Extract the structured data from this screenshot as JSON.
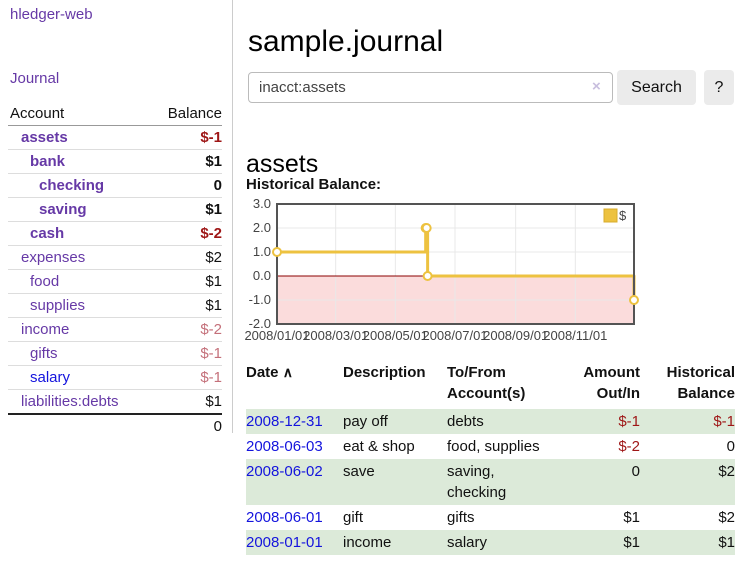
{
  "app": {
    "title": "hledger-web"
  },
  "sidebar": {
    "journal_link": "Journal",
    "accounts_header": {
      "account": "Account",
      "balance": "Balance"
    },
    "accounts": [
      {
        "name": "assets",
        "level": 1,
        "bold": true,
        "balance": "$-1"
      },
      {
        "name": "bank",
        "level": 2,
        "bold": true,
        "balance": "$1"
      },
      {
        "name": "checking",
        "level": 3,
        "bold": true,
        "balance": "0"
      },
      {
        "name": "saving",
        "level": 3,
        "bold": true,
        "balance": "$1"
      },
      {
        "name": "cash",
        "level": 2,
        "bold": true,
        "balance": "$-2"
      },
      {
        "name": "expenses",
        "level": 1,
        "bold": false,
        "balance": "$2"
      },
      {
        "name": "food",
        "level": 2,
        "bold": false,
        "balance": "$1"
      },
      {
        "name": "supplies",
        "level": 2,
        "bold": false,
        "balance": "$1"
      },
      {
        "name": "income",
        "level": 1,
        "bold": false,
        "balance": "$-2"
      },
      {
        "name": "gifts",
        "level": 2,
        "bold": false,
        "balance": "$-1"
      },
      {
        "name": "salary",
        "level": 2,
        "bold": false,
        "balance": "$-1",
        "link_color": "blue"
      },
      {
        "name": "liabilities:debts",
        "level": 1,
        "bold": false,
        "balance": "$1"
      }
    ],
    "total": "0"
  },
  "header": {
    "title": "sample.journal"
  },
  "search": {
    "value": "inacct:assets",
    "clear_icon": "×",
    "button_label": "Search",
    "help_label": "?"
  },
  "account_page": {
    "heading": "assets",
    "chart_label": "Historical Balance:"
  },
  "chart_data": {
    "type": "line",
    "style": "step",
    "title": "Historical Balance",
    "series": [
      {
        "name": "$",
        "color": "#edc240",
        "points": [
          [
            "2008-01-01",
            1
          ],
          [
            "2008-06-01",
            2
          ],
          [
            "2008-06-02",
            2
          ],
          [
            "2008-06-03",
            0
          ],
          [
            "2008-12-31",
            -1
          ]
        ]
      }
    ],
    "x_ticks": [
      "2008/01/01",
      "2008/03/01",
      "2008/05/01",
      "2008/07/01",
      "2008/09/01",
      "2008/11/01"
    ],
    "y_ticks": [
      3.0,
      2.0,
      1.0,
      0.0,
      -1.0,
      -2.0
    ],
    "ylim": [
      -2,
      3
    ],
    "xlim": [
      "2008-01-01",
      "2008-12-31"
    ],
    "grid": true,
    "legend_position": "top-right",
    "negative_region_color": "#fbdcdc",
    "zero_line_color": "#8b0000",
    "border_color": "#545454",
    "grid_color": "#e8e8e8"
  },
  "transactions": {
    "sort_icon": "∧",
    "columns": {
      "date": "Date",
      "description": "Description",
      "tofrom": "To/From Account(s)",
      "amount": "Amount Out/In",
      "balance": "Historical Balance"
    },
    "rows": [
      {
        "date": "2008-12-31",
        "description": "pay off",
        "accounts": "debts",
        "amount": "$-1",
        "balance": "$-1"
      },
      {
        "date": "2008-06-03",
        "description": "eat & shop",
        "accounts": "food, supplies",
        "amount": "$-2",
        "balance": "0"
      },
      {
        "date": "2008-06-02",
        "description": "save",
        "accounts": "saving, checking",
        "amount": "0",
        "balance": "$2"
      },
      {
        "date": "2008-06-01",
        "description": "gift",
        "accounts": "gifts",
        "amount": "$1",
        "balance": "$2"
      },
      {
        "date": "2008-01-01",
        "description": "income",
        "accounts": "salary",
        "amount": "$1",
        "balance": "$1"
      }
    ]
  },
  "colors": {
    "accent_purple": "#6639a6",
    "link_blue": "#1414dd",
    "negative_red": "#9e1616",
    "negative_soft": "#c4707a",
    "row_green": "#dcead9",
    "series_yellow": "#edc240"
  }
}
